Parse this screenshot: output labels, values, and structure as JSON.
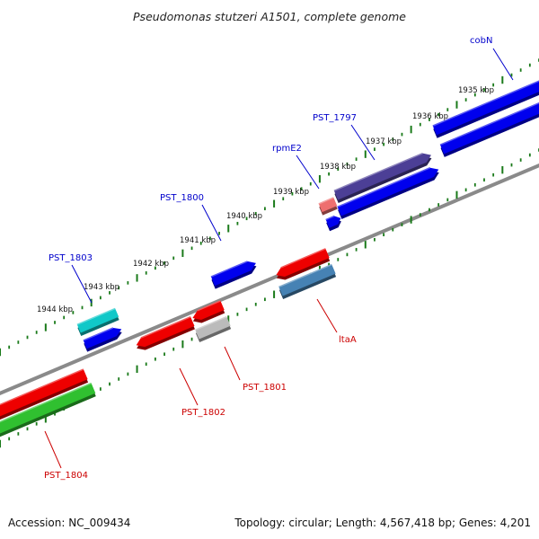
{
  "title": "Pseudomonas stutzeri A1501, complete genome",
  "footer": {
    "accession": "Accession: NC_009434",
    "summary": "Topology: circular; Length: 4,567,418 bp; Genes: 4,201"
  },
  "colors": {
    "backbone": "#8a8a8a",
    "tick": "#1a7a1a",
    "label_forward": "#0000cc",
    "label_reverse": "#cc0000",
    "gene_blue": "#0000ee",
    "gene_red": "#ee0000",
    "gene_cyan": "#10c8c8",
    "gene_purple": "#4c3f96",
    "gene_pink": "#ee6f6f",
    "gene_gray": "#bbbbbb",
    "gene_steel": "#4682b4",
    "gene_green": "#30c030"
  },
  "kbp_labels": [
    "1935 kbp",
    "1936 kbp",
    "1937 kbp",
    "1938 kbp",
    "1939 kbp",
    "1940 kbp",
    "1941 kbp",
    "1942 kbp",
    "1943 kbp",
    "1944 kbp"
  ],
  "gene_labels": [
    {
      "id": "cobN",
      "text": "cobN",
      "strand": "forward"
    },
    {
      "id": "PST_1797",
      "text": "PST_1797",
      "strand": "forward"
    },
    {
      "id": "rpmE2",
      "text": "rpmE2",
      "strand": "forward"
    },
    {
      "id": "PST_1800",
      "text": "PST_1800",
      "strand": "forward"
    },
    {
      "id": "PST_1803",
      "text": "PST_1803",
      "strand": "forward"
    },
    {
      "id": "ltaA",
      "text": "ltaA",
      "strand": "reverse"
    },
    {
      "id": "PST_1801",
      "text": "PST_1801",
      "strand": "reverse"
    },
    {
      "id": "PST_1802",
      "text": "PST_1802",
      "strand": "reverse"
    },
    {
      "id": "PST_1804",
      "text": "PST_1804",
      "strand": "reverse"
    }
  ]
}
